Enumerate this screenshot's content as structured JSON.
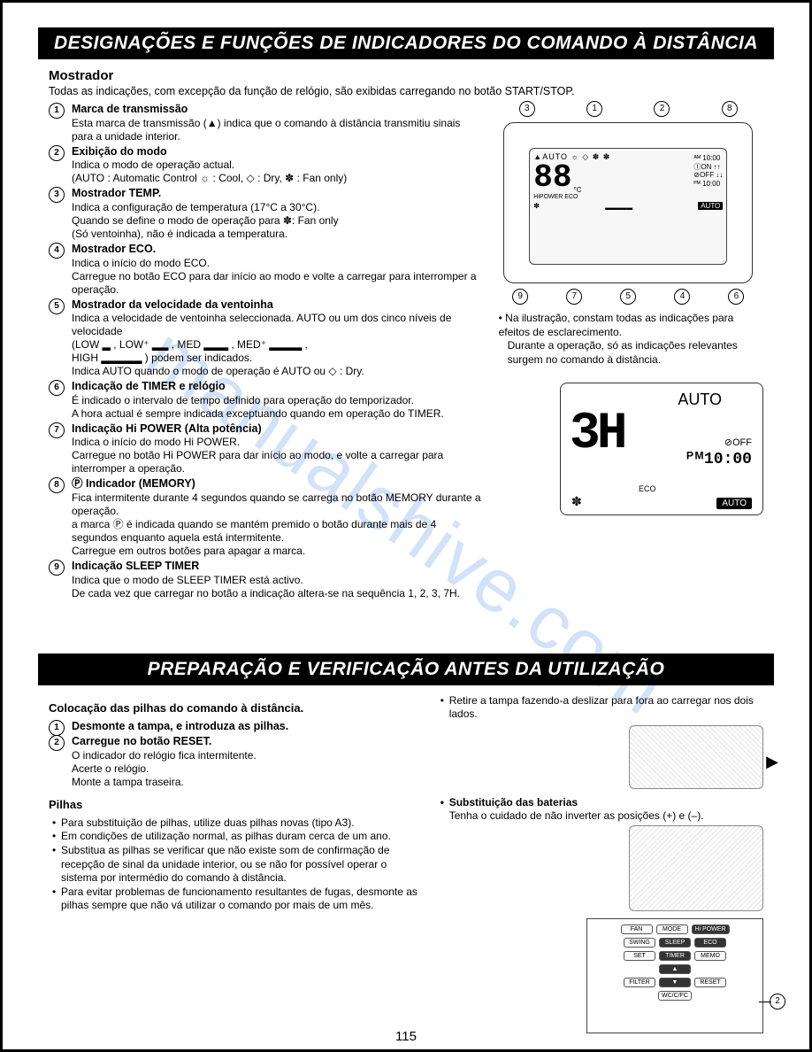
{
  "watermark": "manualshive.com",
  "page_number": "115",
  "section1": {
    "header": "DESIGNAÇÕES E FUNÇÕES DE INDICADORES DO COMANDO À DISTÂNCIA",
    "title": "Mostrador",
    "intro": "Todas as indicações, com excepção da função de relógio, são exibidas carregando no botão START/STOP.",
    "items": [
      {
        "num": "1",
        "title": "Marca de transmissão",
        "body": "Esta marca de transmissão (▲) indica que o comando à distância transmitiu sinais para a unidade interior."
      },
      {
        "num": "2",
        "title": "Exibição do modo",
        "body": "Indica o modo de operação actual.\n(AUTO : Automatic Control ☼ : Cool, ◇ : Dry, ✽ : Fan only)"
      },
      {
        "num": "3",
        "title": "Mostrador TEMP.",
        "body": "Indica a configuração de temperatura (17°C a 30°C).\nQuando se define o modo de operação para ✽: Fan only\n(Só ventoinha), não é indicada a temperatura."
      },
      {
        "num": "4",
        "title": "Mostrador ECO.",
        "body": "Indica o início do modo ECO.\nCarregue no botão ECO para dar início ao modo e volte a carregar para interromper a operação."
      },
      {
        "num": "5",
        "title": "Mostrador da velocidade da ventoinha",
        "body": "Indica a velocidade de ventoinha seleccionada. AUTO ou um dos cinco níveis de velocidade\n(LOW ▂ , LOW⁺ ▂▂ , MED ▂▂▂ , MED⁺ ▂▂▂▂ ,\nHIGH ▂▂▂▂▂ ) podem ser indicados.\nIndica AUTO quando o modo de operação é AUTO ou ◇ : Dry."
      },
      {
        "num": "6",
        "title": "Indicação de TIMER e relógio",
        "body": "É indicado o intervalo de tempo definido para operação do temporizador.\nA hora actual é sempre indicada exceptuando quando em operação do TIMER."
      },
      {
        "num": "7",
        "title": "Indicação Hi POWER (Alta potência)",
        "body": "Indica o início do modo Hi POWER.\nCarregue no botão Hi POWER para dar início ao modo, e volte a carregar para interromper a operação."
      },
      {
        "num": "8",
        "title": "Ⓟ Indicador (MEMORY)",
        "body": "Fica intermitente durante 4 segundos quando se carrega no botão MEMORY durante a operação.\na marca Ⓟ é indicada quando se mantém premido o botão durante mais de 4 segundos enquanto aquela está intermitente.\nCarregue em outros botões para apagar a marca."
      },
      {
        "num": "9",
        "title": "Indicação SLEEP TIMER",
        "body": "Indica que o modo de SLEEP TIMER está activo.\nDe cada vez que carregar no botão a indicação altera-se na sequência 1, 2, 3, 7H."
      }
    ],
    "callouts_top": [
      "3",
      "1",
      "2",
      "8"
    ],
    "callouts_bot": [
      "9",
      "7",
      "5",
      "4",
      "6"
    ],
    "caption1": "Na ilustração, constam todas as indicações para efeitos de esclarecimento.",
    "caption2": "Durante a operação, só as indicações relevantes surgem no comando à distância.",
    "example": {
      "auto": "AUTO",
      "big": "3H",
      "off": "⊘OFF",
      "time": "ᴾᴹ10:00",
      "eco": "ECO",
      "fan": "✽",
      "auto_badge": "AUTO"
    },
    "lcd_main": {
      "row1": "▲AUTO ☼ ◇ ✽ ✽",
      "big": "88",
      "side_top": "ᴬᴹ 10:00",
      "side_on": "ⒾON ↑↑",
      "side_off": "⊘OFF ↓↓",
      "side_bot": "ᴾᴹ 10:00",
      "bot_left": "HiPOWER ECO",
      "bot_fan": "✽",
      "bot_bars": "▂▂▂▂▂",
      "bot_auto": "AUTO"
    }
  },
  "section2": {
    "header": "PREPARAÇÃO E VERIFICAÇÃO ANTES DA UTILIZAÇÃO",
    "sub1": "Colocação das pilhas do comando à distância.",
    "items": [
      {
        "num": "1",
        "title": "Desmonte a tampa, e introduza as pilhas."
      },
      {
        "num": "2",
        "title": "Carregue no botão RESET.",
        "body": "O indicador do relógio fica intermitente.\nAcerte o relógio.\nMonte a tampa traseira."
      }
    ],
    "right_bullets": [
      "Retire a tampa fazendo-a deslizar para fora ao carregar nos dois lados.",
      "Substituição das baterias"
    ],
    "right_sub": "Tenha o cuidado de não inverter as posições (+) e (–).",
    "pilhas_title": "Pilhas",
    "pilhas": [
      "Para substituição de pilhas, utilize duas pilhas novas (tipo A3).",
      "Em condições de utilização normal, as pilhas duram cerca de um ano.",
      "Substitua as pilhas se verificar que não existe som de confirmação de recepção de sinal da unidade interior, ou se não for possível operar o sistema por intermédio do comando à distância.",
      "Para evitar problemas de funcionamento resultantes de fugas, desmonte as pilhas sempre que não vá utilizar o comando por mais de um mês."
    ],
    "panel": {
      "row1": [
        "FAN",
        "MODE",
        "Hi POWER"
      ],
      "row2": [
        "SWING",
        "SLEEP",
        "ECO"
      ],
      "row3": [
        "SET",
        "TIMER",
        "MEMO"
      ],
      "row4": [
        "",
        "▲",
        ""
      ],
      "row5": [
        "FILTER",
        "▼",
        "RESET"
      ],
      "row6": [
        "WC/C/FC"
      ],
      "callout": "2"
    }
  }
}
